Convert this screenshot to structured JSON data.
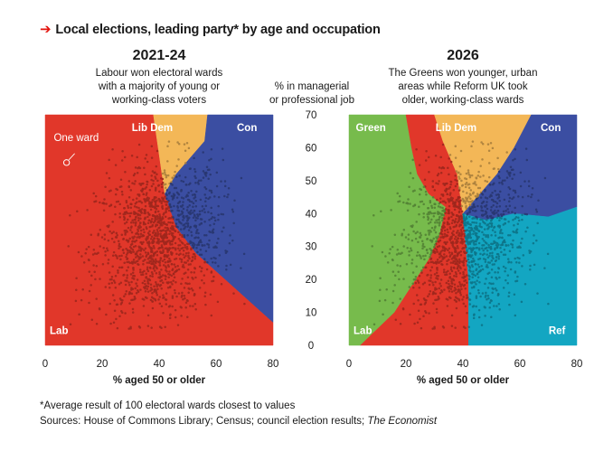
{
  "header": {
    "title": "Local elections, leading party* by age and occupation"
  },
  "panels": [
    {
      "title": "2021-24",
      "subtitle_lines": [
        "Labour won electoral wards",
        "with a majority of young or",
        "working-class voters"
      ]
    },
    {
      "title": "2026",
      "subtitle_lines": [
        "The Greens won younger, urban",
        "areas while Reform UK took",
        "older, working-class wards"
      ]
    }
  ],
  "y_axis": {
    "label_lines": [
      "% in managerial",
      "or professional job"
    ]
  },
  "annotation": {
    "text": "One ward"
  },
  "footer": {
    "note": "*Average result of 100 electoral wards closest to values",
    "sources_prefix": "Sources: House of Commons Library; Census; council election results; ",
    "sources_italic": "The Economist"
  },
  "colors": {
    "Lab": "#e1372a",
    "Con": "#3b4ea2",
    "Lib Dem": "#f3b757",
    "Green": "#77bb4c",
    "Ref": "#13a6c2",
    "accent": "#e3120b"
  },
  "chart_data": [
    {
      "type": "scatter",
      "title": "2021-24",
      "xlabel": "% aged 50 or older",
      "ylabel": "% in managerial or professional job",
      "xlim": [
        0,
        80
      ],
      "ylim": [
        0,
        70
      ],
      "xticks": [
        0,
        20,
        40,
        60,
        80
      ],
      "yticks": [
        0,
        10,
        20,
        30,
        40,
        50,
        60,
        70
      ],
      "regions": [
        {
          "party": "Lab",
          "label": "Lab",
          "polygon": [
            [
              0,
              0
            ],
            [
              0,
              70
            ],
            [
              38,
              70
            ],
            [
              42,
              46
            ],
            [
              46,
              36
            ],
            [
              53,
              28
            ],
            [
              80,
              7
            ],
            [
              80,
              0
            ]
          ]
        },
        {
          "party": "Lib Dem",
          "label": "Lib Dem",
          "polygon": [
            [
              38,
              70
            ],
            [
              57,
              70
            ],
            [
              56,
              62
            ],
            [
              50,
              56
            ],
            [
              46,
              52
            ],
            [
              42,
              46
            ]
          ]
        },
        {
          "party": "Con",
          "label": "Con",
          "polygon": [
            [
              57,
              70
            ],
            [
              80,
              70
            ],
            [
              80,
              7
            ],
            [
              53,
              28
            ],
            [
              46,
              36
            ],
            [
              42,
              46
            ],
            [
              46,
              52
            ],
            [
              50,
              56
            ],
            [
              56,
              62
            ]
          ]
        }
      ],
      "point_cloud": {
        "description": "Electoral wards; dots coloured darker shade of leading party",
        "approx_center": [
          40,
          32
        ],
        "x_range": [
          8,
          70
        ],
        "y_range": [
          5,
          62
        ]
      }
    },
    {
      "type": "scatter",
      "title": "2026",
      "xlabel": "% aged 50 or older",
      "ylabel": "% in managerial or professional job",
      "xlim": [
        0,
        80
      ],
      "ylim": [
        0,
        70
      ],
      "xticks": [
        0,
        20,
        40,
        60,
        80
      ],
      "yticks": [
        0,
        10,
        20,
        30,
        40,
        50,
        60,
        70
      ],
      "regions": [
        {
          "party": "Green",
          "label": "Green",
          "polygon": [
            [
              0,
              70
            ],
            [
              20,
              70
            ],
            [
              22,
              60
            ],
            [
              24,
              52
            ],
            [
              28,
              46
            ],
            [
              34,
              42
            ],
            [
              32,
              34
            ],
            [
              28,
              26
            ],
            [
              22,
              18
            ],
            [
              16,
              10
            ],
            [
              4,
              0
            ],
            [
              0,
              0
            ]
          ]
        },
        {
          "party": "Lab",
          "label": "Lab",
          "polygon": [
            [
              4,
              0
            ],
            [
              16,
              10
            ],
            [
              22,
              18
            ],
            [
              28,
              26
            ],
            [
              32,
              34
            ],
            [
              34,
              42
            ],
            [
              28,
              46
            ],
            [
              24,
              52
            ],
            [
              22,
              60
            ],
            [
              20,
              70
            ],
            [
              30,
              70
            ],
            [
              33,
              62
            ],
            [
              38,
              52
            ],
            [
              40,
              40
            ],
            [
              41,
              30
            ],
            [
              42,
              20
            ],
            [
              42,
              0
            ]
          ]
        },
        {
          "party": "Lib Dem",
          "label": "Lib Dem",
          "polygon": [
            [
              30,
              70
            ],
            [
              64,
              70
            ],
            [
              58,
              60
            ],
            [
              52,
              52
            ],
            [
              46,
              46
            ],
            [
              40,
              40
            ],
            [
              38,
              52
            ],
            [
              33,
              62
            ]
          ]
        },
        {
          "party": "Con",
          "label": "Con",
          "polygon": [
            [
              64,
              70
            ],
            [
              80,
              70
            ],
            [
              80,
              42
            ],
            [
              70,
              39
            ],
            [
              58,
              40
            ],
            [
              48,
              38
            ],
            [
              40,
              40
            ],
            [
              46,
              46
            ],
            [
              52,
              52
            ],
            [
              58,
              60
            ]
          ]
        },
        {
          "party": "Ref",
          "label": "Ref",
          "polygon": [
            [
              42,
              0
            ],
            [
              80,
              0
            ],
            [
              80,
              42
            ],
            [
              70,
              39
            ],
            [
              58,
              40
            ],
            [
              48,
              38
            ],
            [
              40,
              40
            ],
            [
              41,
              30
            ],
            [
              42,
              20
            ]
          ]
        }
      ],
      "point_cloud": {
        "description": "Electoral wards; dots coloured darker shade of leading party",
        "approx_center": [
          40,
          32
        ],
        "x_range": [
          8,
          70
        ],
        "y_range": [
          5,
          62
        ]
      }
    }
  ]
}
